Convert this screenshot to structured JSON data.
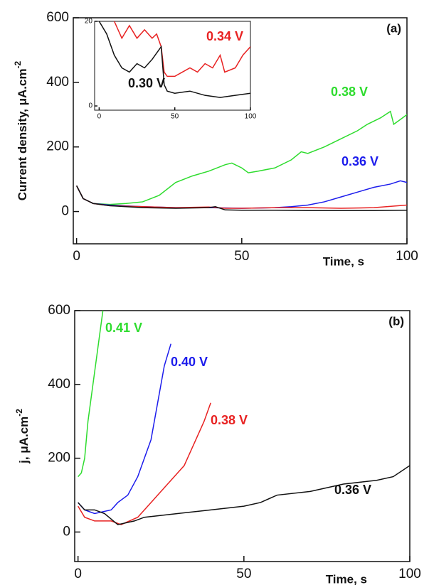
{
  "chart_data": [
    {
      "type": "line",
      "panel_label": "(a)",
      "x_label": "Time, s",
      "y_label": {
        "text": "Current density, μA.cm",
        "sup": "-2"
      },
      "xlim": [
        -1,
        100
      ],
      "ylim": [
        -100,
        600
      ],
      "xticks": [
        0,
        50,
        100
      ],
      "yticks": [
        0,
        200,
        400,
        600
      ],
      "series": [
        {
          "name": "0.38 V",
          "color": "#2edc2e",
          "x": [
            0,
            2,
            5,
            10,
            15,
            20,
            25,
            30,
            35,
            40,
            45,
            47,
            50,
            52,
            55,
            60,
            65,
            68,
            70,
            75,
            80,
            85,
            88,
            92,
            95,
            96,
            98,
            100
          ],
          "values": [
            80,
            40,
            25,
            22,
            25,
            30,
            50,
            90,
            110,
            125,
            145,
            150,
            135,
            120,
            125,
            135,
            160,
            185,
            180,
            200,
            225,
            250,
            270,
            290,
            310,
            270,
            285,
            300
          ]
        },
        {
          "name": "0.36 V",
          "color": "#1c1cec",
          "x": [
            0,
            2,
            5,
            10,
            20,
            30,
            40,
            50,
            60,
            65,
            70,
            75,
            80,
            85,
            90,
            95,
            98,
            100
          ],
          "values": [
            80,
            40,
            25,
            20,
            15,
            12,
            12,
            10,
            12,
            15,
            20,
            30,
            45,
            60,
            75,
            85,
            95,
            90
          ]
        },
        {
          "name": "0.34 V",
          "color": "#e82222",
          "x": [
            0,
            2,
            5,
            10,
            20,
            30,
            40,
            45,
            50,
            60,
            70,
            80,
            90,
            100
          ],
          "values": [
            80,
            40,
            25,
            18,
            15,
            12,
            14,
            10,
            10,
            12,
            12,
            10,
            12,
            20
          ]
        },
        {
          "name": "0.30 V",
          "color": "#111111",
          "x": [
            0,
            2,
            5,
            10,
            20,
            30,
            40,
            42,
            45,
            50,
            60,
            70,
            80,
            90,
            100
          ],
          "values": [
            80,
            40,
            25,
            18,
            12,
            10,
            12,
            15,
            5,
            4,
            4,
            3,
            3,
            3,
            4
          ]
        }
      ]
    },
    {
      "type": "line",
      "xlim": [
        -3,
        100
      ],
      "ylim": [
        -1,
        20
      ],
      "xticks": [
        0,
        50,
        100
      ],
      "yticks": [
        0,
        20
      ],
      "series": [
        {
          "name": "0.34 V",
          "color": "#e82222",
          "x": [
            10,
            15,
            20,
            25,
            30,
            35,
            38,
            41,
            43,
            45,
            50,
            55,
            60,
            65,
            70,
            75,
            80,
            83,
            90,
            95,
            100
          ],
          "values": [
            20,
            16,
            19,
            16,
            18,
            16,
            17,
            14,
            8,
            7,
            7,
            8,
            9,
            8,
            10,
            9,
            12,
            8,
            9,
            12,
            14
          ]
        },
        {
          "name": "0.30 V",
          "color": "#111111",
          "x": [
            0,
            5,
            10,
            15,
            20,
            25,
            30,
            35,
            41,
            43,
            45,
            50,
            60,
            70,
            80,
            90,
            100
          ],
          "values": [
            20,
            17,
            12,
            9,
            8,
            10,
            9,
            11,
            14,
            5,
            3.5,
            3,
            3.5,
            2.5,
            2,
            2.5,
            3
          ]
        }
      ]
    },
    {
      "type": "line",
      "panel_label": "(b)",
      "x_label": "Time, s",
      "y_label": {
        "text": "j, μA.cm",
        "sup": "-2"
      },
      "xlim": [
        -1,
        100
      ],
      "ylim": [
        -80,
        600
      ],
      "xticks": [
        0,
        50,
        100
      ],
      "yticks": [
        0,
        200,
        400,
        600
      ],
      "series": [
        {
          "name": "0.41 V",
          "color": "#2edc2e",
          "x": [
            0,
            1,
            2,
            3,
            4.5,
            6,
            7.5
          ],
          "values": [
            150,
            160,
            200,
            300,
            400,
            500,
            600
          ]
        },
        {
          "name": "0.40 V",
          "color": "#1c1cec",
          "x": [
            0,
            2,
            5,
            10,
            12,
            15,
            18,
            22,
            24,
            26,
            28
          ],
          "values": [
            80,
            60,
            50,
            60,
            80,
            100,
            150,
            250,
            350,
            450,
            510
          ]
        },
        {
          "name": "0.38 V",
          "color": "#e82222",
          "x": [
            0,
            2,
            5,
            10,
            13,
            18,
            22,
            27,
            32,
            35,
            38,
            40
          ],
          "values": [
            70,
            40,
            30,
            30,
            20,
            40,
            80,
            130,
            180,
            240,
            300,
            350
          ]
        },
        {
          "name": "0.36 V",
          "color": "#111111",
          "x": [
            0,
            2,
            5,
            8,
            12,
            17,
            20,
            30,
            40,
            50,
            55,
            60,
            70,
            80,
            90,
            95,
            100
          ],
          "values": [
            80,
            60,
            60,
            50,
            20,
            30,
            40,
            50,
            60,
            70,
            80,
            100,
            110,
            130,
            140,
            150,
            180
          ]
        }
      ]
    }
  ]
}
